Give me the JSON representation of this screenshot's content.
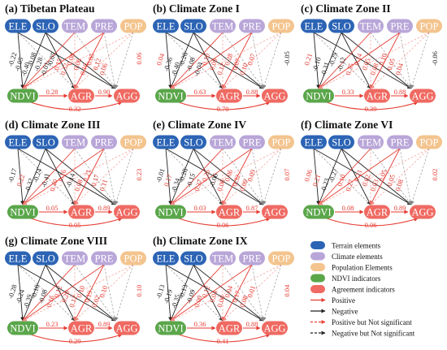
{
  "colors": {
    "terrain": "#2c64b5",
    "climate": "#b9a6d8",
    "population": "#f3c48e",
    "ndvi": "#5aa64a",
    "agreement": "#ef6a62",
    "positive": "#e63b32",
    "negative": "#222222",
    "pos_ns": "#f08a84",
    "neg_ns": "#888888"
  },
  "node_labels": [
    "ELE",
    "SLO",
    "TEM",
    "PRE",
    "POP",
    "NDVI",
    "AGR",
    "AGG"
  ],
  "panels": [
    {
      "title": "(a) Tibetan Plateau",
      "left_labels": [
        "-0.22",
        "-0.05",
        "-0.40",
        "-0.08",
        "-0.28",
        "-0.01",
        "-0.05",
        "0.15",
        "0.32",
        "0.08",
        "0.06",
        "0.10",
        "0.05",
        "0.12",
        "0.06"
      ],
      "right_labels": [
        "0.06"
      ],
      "ndvi_agr": "0.28",
      "agr_agg": "0.90",
      "ndvi_agg": "0.32"
    },
    {
      "title": "(b) Climate Zone I",
      "left_labels": [
        "0.04",
        "-0.36",
        "-0.40",
        "-0.28",
        "-0.08",
        "-0.04",
        "0.10",
        "0.09",
        "0.12",
        "0.28",
        "0.07",
        "0.10",
        "0.07"
      ],
      "right_labels": [
        "-0.05"
      ],
      "ndvi_agr": "0.63",
      "agr_agg": "0.88",
      "ndvi_agg": "0.70"
    },
    {
      "title": "(c) Climate Zone II",
      "left_labels": [
        "0.21",
        "-0.10",
        "-0.31",
        "-0.29",
        "-0.12",
        "0.35",
        "0.14",
        "0.05",
        "0.08",
        "0.10",
        "0.05",
        "0.04"
      ],
      "right_labels": [
        "-0.06"
      ],
      "ndvi_agr": "0.33",
      "agr_agg": "0.88",
      "ndvi_agg": "0.39"
    },
    {
      "title": "(d) Climate Zone III",
      "left_labels": [
        "-0.17",
        "0.22",
        "-0.32",
        "-0.24",
        "-0.41",
        "0.40",
        "0.16",
        "-0.14",
        "0.08",
        "0.21",
        "0.17",
        "0.11"
      ],
      "right_labels": [
        "0.23"
      ],
      "ndvi_agr": "0.05",
      "agr_agg": "0.89",
      "ndvi_agg": "0.05"
    },
    {
      "title": "(e) Climate Zone IV",
      "left_labels": [
        "-0.01",
        "0.17",
        "-0.34",
        "-0.28",
        "-0.15",
        "0.37",
        "0.26",
        "-0.06",
        "0.06",
        "0.06",
        "0.32",
        "0.09",
        "0.09"
      ],
      "right_labels": [
        "0.07"
      ],
      "ndvi_agr": "0.03",
      "agr_agg": "0.87",
      "ndvi_agg": "0.06"
    },
    {
      "title": "(f) Climate Zone VI",
      "left_labels": [
        "0.06",
        "0.21",
        "-0.23",
        "-0.27",
        "0.10",
        "0.27",
        "0.21",
        "0.02",
        "0.03",
        "0.05",
        "0.05",
        "0.08"
      ],
      "right_labels": [
        "0.02"
      ],
      "ndvi_agr": "0.08",
      "agr_agg": "0.89",
      "ndvi_agg": "0.06"
    },
    {
      "title": "(g) Climate Zone VIII",
      "left_labels": [
        "-0.28",
        "-0.24",
        "-0.39",
        "-0.10",
        "-0.08",
        "0.16",
        "0.12",
        "0.20",
        "0.12",
        "0.10",
        "0.19",
        "0.02",
        "0.10"
      ],
      "right_labels": [
        "0.10"
      ],
      "ndvi_agr": "0.23",
      "agr_agg": "0.89",
      "ndvi_agg": "0.29"
    },
    {
      "title": "(h) Climate Zone IX",
      "left_labels": [
        "-0.13",
        "-0.19",
        "-0.35",
        "-0.13",
        "-0.09",
        "0.09",
        "0.12",
        "0.04",
        "0.06",
        "0.04",
        "0.17",
        "0.08",
        "0.01"
      ],
      "right_labels": [
        "0.04"
      ],
      "ndvi_agr": "0.36",
      "agr_agg": "0.88",
      "ndvi_agg": "0.41"
    }
  ],
  "legend": {
    "items": [
      {
        "kind": "swatch",
        "color": "#2c64b5",
        "label": "Terrain elements"
      },
      {
        "kind": "swatch",
        "color": "#b9a6d8",
        "label": "Climate elements"
      },
      {
        "kind": "swatch",
        "color": "#f3c48e",
        "label": "Population Elements"
      },
      {
        "kind": "swatch",
        "color": "#5aa64a",
        "label": "NDVI indicators"
      },
      {
        "kind": "swatch",
        "color": "#ef6a62",
        "label": "Agreement indicators"
      },
      {
        "kind": "arrow",
        "style": "solid",
        "color": "#e63b32",
        "label": "Positive"
      },
      {
        "kind": "arrow",
        "style": "solid",
        "color": "#222222",
        "label": "Negative"
      },
      {
        "kind": "arrow",
        "style": "dashed",
        "color": "#e63b32",
        "label": "Positive but Not significant"
      },
      {
        "kind": "arrow",
        "style": "dashed",
        "color": "#222222",
        "label": "Negative but Not significant"
      }
    ]
  }
}
